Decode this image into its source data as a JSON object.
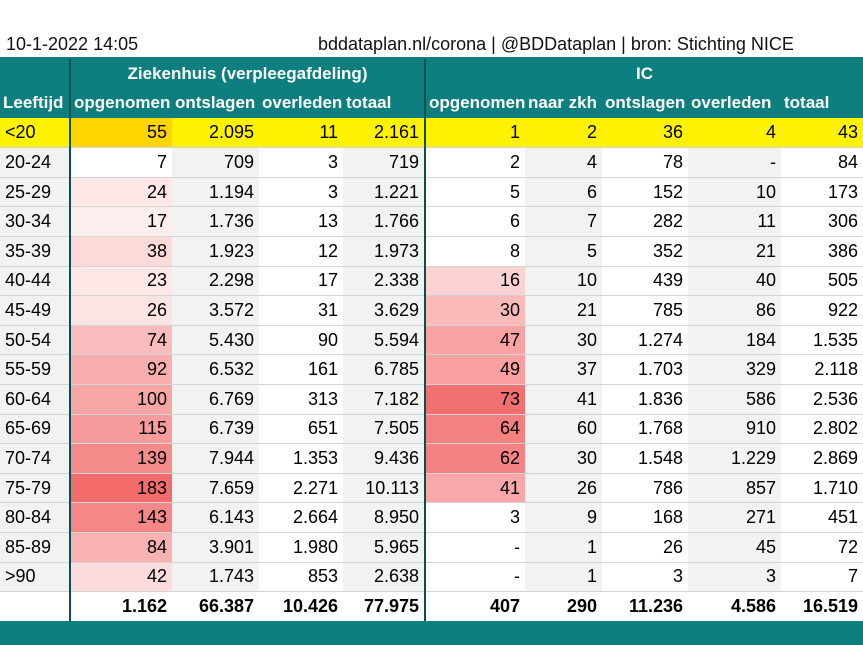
{
  "header": {
    "date": "10-1-2022 14:05",
    "source": "bddataplan.nl/corona | @BDDataplan | bron: Stichting NICE"
  },
  "groups": {
    "hospital": "Ziekenhuis (verpleegafdeling)",
    "ic": "IC"
  },
  "columns": {
    "age": "Leeftijd",
    "hosp_admitted": "opgenomen",
    "hosp_discharged": "ontslagen",
    "hosp_died": "overleden",
    "hosp_total": "totaal",
    "ic_admitted": "opgenomen",
    "ic_transferred": "naar zkh",
    "ic_discharged": "ontslagen",
    "ic_died": "overleden",
    "ic_total": "totaal"
  },
  "rows": [
    {
      "age": "<20",
      "h_adm": "55",
      "h_dis": "2.095",
      "h_died": "11",
      "h_tot": "2.161",
      "i_adm": "1",
      "i_zkh": "2",
      "i_dis": "36",
      "i_died": "4",
      "i_tot": "43"
    },
    {
      "age": "20-24",
      "h_adm": "7",
      "h_dis": "709",
      "h_died": "3",
      "h_tot": "719",
      "i_adm": "2",
      "i_zkh": "4",
      "i_dis": "78",
      "i_died": "-",
      "i_tot": "84"
    },
    {
      "age": "25-29",
      "h_adm": "24",
      "h_dis": "1.194",
      "h_died": "3",
      "h_tot": "1.221",
      "i_adm": "5",
      "i_zkh": "6",
      "i_dis": "152",
      "i_died": "10",
      "i_tot": "173"
    },
    {
      "age": "30-34",
      "h_adm": "17",
      "h_dis": "1.736",
      "h_died": "13",
      "h_tot": "1.766",
      "i_adm": "6",
      "i_zkh": "7",
      "i_dis": "282",
      "i_died": "11",
      "i_tot": "306"
    },
    {
      "age": "35-39",
      "h_adm": "38",
      "h_dis": "1.923",
      "h_died": "12",
      "h_tot": "1.973",
      "i_adm": "8",
      "i_zkh": "5",
      "i_dis": "352",
      "i_died": "21",
      "i_tot": "386"
    },
    {
      "age": "40-44",
      "h_adm": "23",
      "h_dis": "2.298",
      "h_died": "17",
      "h_tot": "2.338",
      "i_adm": "16",
      "i_zkh": "10",
      "i_dis": "439",
      "i_died": "40",
      "i_tot": "505"
    },
    {
      "age": "45-49",
      "h_adm": "26",
      "h_dis": "3.572",
      "h_died": "31",
      "h_tot": "3.629",
      "i_adm": "30",
      "i_zkh": "21",
      "i_dis": "785",
      "i_died": "86",
      "i_tot": "922"
    },
    {
      "age": "50-54",
      "h_adm": "74",
      "h_dis": "5.430",
      "h_died": "90",
      "h_tot": "5.594",
      "i_adm": "47",
      "i_zkh": "30",
      "i_dis": "1.274",
      "i_died": "184",
      "i_tot": "1.535"
    },
    {
      "age": "55-59",
      "h_adm": "92",
      "h_dis": "6.532",
      "h_died": "161",
      "h_tot": "6.785",
      "i_adm": "49",
      "i_zkh": "37",
      "i_dis": "1.703",
      "i_died": "329",
      "i_tot": "2.118"
    },
    {
      "age": "60-64",
      "h_adm": "100",
      "h_dis": "6.769",
      "h_died": "313",
      "h_tot": "7.182",
      "i_adm": "73",
      "i_zkh": "41",
      "i_dis": "1.836",
      "i_died": "586",
      "i_tot": "2.536"
    },
    {
      "age": "65-69",
      "h_adm": "115",
      "h_dis": "6.739",
      "h_died": "651",
      "h_tot": "7.505",
      "i_adm": "64",
      "i_zkh": "60",
      "i_dis": "1.768",
      "i_died": "910",
      "i_tot": "2.802"
    },
    {
      "age": "70-74",
      "h_adm": "139",
      "h_dis": "7.944",
      "h_died": "1.353",
      "h_tot": "9.436",
      "i_adm": "62",
      "i_zkh": "30",
      "i_dis": "1.548",
      "i_died": "1.229",
      "i_tot": "2.869"
    },
    {
      "age": "75-79",
      "h_adm": "183",
      "h_dis": "7.659",
      "h_died": "2.271",
      "h_tot": "10.113",
      "i_adm": "41",
      "i_zkh": "26",
      "i_dis": "786",
      "i_died": "857",
      "i_tot": "1.710"
    },
    {
      "age": "80-84",
      "h_adm": "143",
      "h_dis": "6.143",
      "h_died": "2.664",
      "h_tot": "8.950",
      "i_adm": "3",
      "i_zkh": "9",
      "i_dis": "168",
      "i_died": "271",
      "i_tot": "451"
    },
    {
      "age": "85-89",
      "h_adm": "84",
      "h_dis": "3.901",
      "h_died": "1.980",
      "h_tot": "5.965",
      "i_adm": "-",
      "i_zkh": "1",
      "i_dis": "26",
      "i_died": "45",
      "i_tot": "72"
    },
    {
      "age": ">90",
      "h_adm": "42",
      "h_dis": "1.743",
      "h_died": "853",
      "h_tot": "2.638",
      "i_adm": "-",
      "i_zkh": "1",
      "i_dis": "3",
      "i_died": "3",
      "i_tot": "7"
    }
  ],
  "totals": {
    "age": "",
    "h_adm": "1.162",
    "h_dis": "66.387",
    "h_died": "10.426",
    "h_tot": "77.975",
    "i_adm": "407",
    "i_zkh": "290",
    "i_dis": "11.236",
    "i_died": "4.586",
    "i_tot": "16.519"
  },
  "heat_colors": {
    "hosp_admitted": [
      "#ffd500",
      "#ffffff",
      "#fde7e7",
      "#fdeeee",
      "#fcdada",
      "#fde7e7",
      "#fde4e4",
      "#f9bbbb",
      "#f8aeae",
      "#f7a6a6",
      "#f79c9c",
      "#f58b8b",
      "#f36b6b",
      "#f48787",
      "#f8b2b2",
      "#fcdcdc"
    ],
    "ic_admitted": [
      "#fff200",
      "#ffffff",
      "#ffffff",
      "#ffffff",
      "#ffffff",
      "#fcd2d2",
      "#fbbaba",
      "#f9a2a2",
      "#f99f9f",
      "#f37070",
      "#f58080",
      "#f58383",
      "#f8a8a8",
      "#ffffff",
      "#ffffff",
      "#ffffff"
    ]
  },
  "highlight_color": "#fff200",
  "header_color": "#0e7f7f"
}
